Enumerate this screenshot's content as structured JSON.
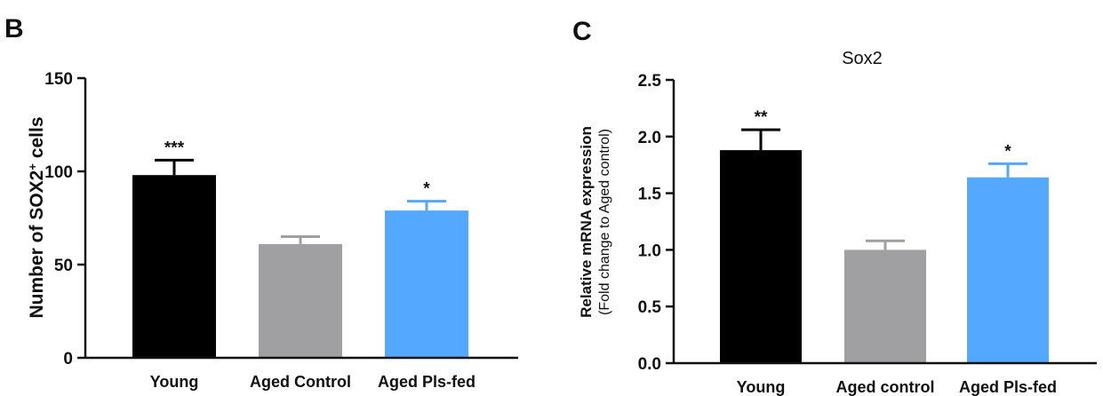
{
  "chart_data": [
    {
      "panel": "B",
      "type": "bar",
      "title": "",
      "xlabel": "",
      "ylabel": "Number of SOX2",
      "ylabel_sup": "+",
      "ylabel_suffix": " cells",
      "ylim": [
        0,
        150
      ],
      "yticks": [
        "0",
        "50",
        "100",
        "150"
      ],
      "categories": [
        "Young",
        "Aged Control",
        "Aged Pls-fed"
      ],
      "values": [
        98,
        61,
        79
      ],
      "errors": [
        8,
        4,
        5
      ],
      "significance": [
        "***",
        "",
        "*"
      ],
      "colors": [
        "#000000",
        "#a0a0a2",
        "#55a8ff"
      ],
      "grid": false
    },
    {
      "panel": "C",
      "type": "bar",
      "title": "Sox2",
      "xlabel": "",
      "ylabel": "Relative mRNA expression",
      "ylabel2": "(Fold change to Aged control)",
      "ylim": [
        0,
        2.5
      ],
      "yticks": [
        "0.0",
        "0.5",
        "1.0",
        "1.5",
        "2.0",
        "2.5"
      ],
      "categories": [
        "Young",
        "Aged control",
        "Aged Pls-fed"
      ],
      "values": [
        1.88,
        1.0,
        1.64
      ],
      "errors": [
        0.18,
        0.08,
        0.12
      ],
      "significance": [
        "**",
        "",
        "*"
      ],
      "colors": [
        "#000000",
        "#a0a0a2",
        "#55a8ff"
      ],
      "grid": false
    }
  ]
}
